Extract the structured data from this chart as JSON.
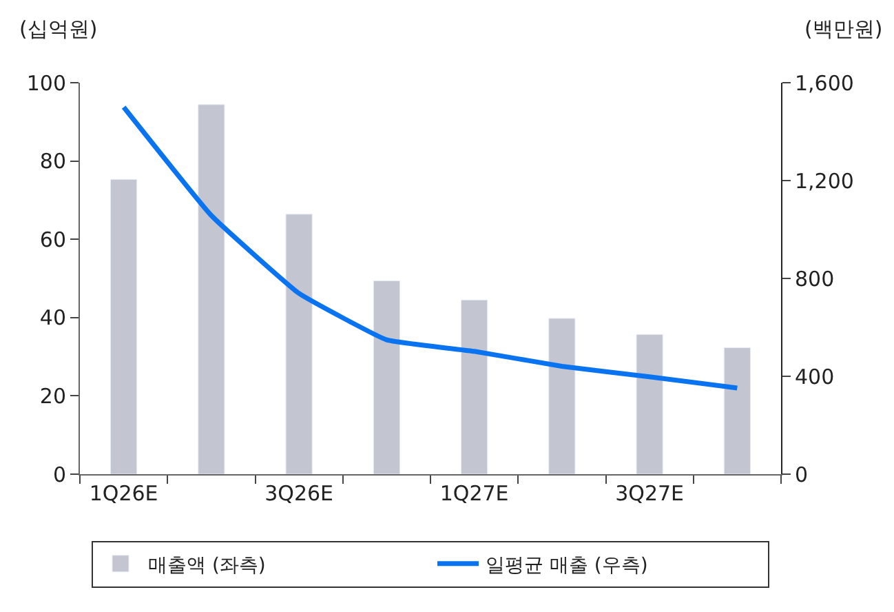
{
  "chart_data": {
    "type": "bar",
    "ylabel": "(십억원)",
    "y2label": "(백만원)",
    "categories": [
      "1Q26E",
      null,
      "3Q26E",
      null,
      "1Q27E",
      null,
      "3Q27E",
      null
    ],
    "series": [
      {
        "name": "매출액 (좌측)",
        "color": "#c3c5d0",
        "values": [
          75.3,
          94.4,
          66.4,
          49.4,
          44.5,
          39.8,
          35.7,
          32.3
        ]
      },
      {
        "name": "일평균 매출 (우측)",
        "type": "line",
        "axis": "y2",
        "color": "#0a74f0",
        "values": [
          1500,
          1057,
          739,
          549,
          502,
          441,
          398,
          352
        ]
      }
    ],
    "ylim": [
      0,
      100
    ],
    "yticks": [
      0,
      20,
      40,
      60,
      80,
      100
    ],
    "y2lim": [
      0,
      1600
    ],
    "y2ticks": [
      0,
      {
        "value": 400,
        "label": "400"
      },
      {
        "value": 800,
        "label": "800"
      },
      {
        "value": 1200,
        "label": "1,200"
      },
      {
        "value": 1600,
        "label": "1,600"
      }
    ],
    "legend": "bottom"
  }
}
